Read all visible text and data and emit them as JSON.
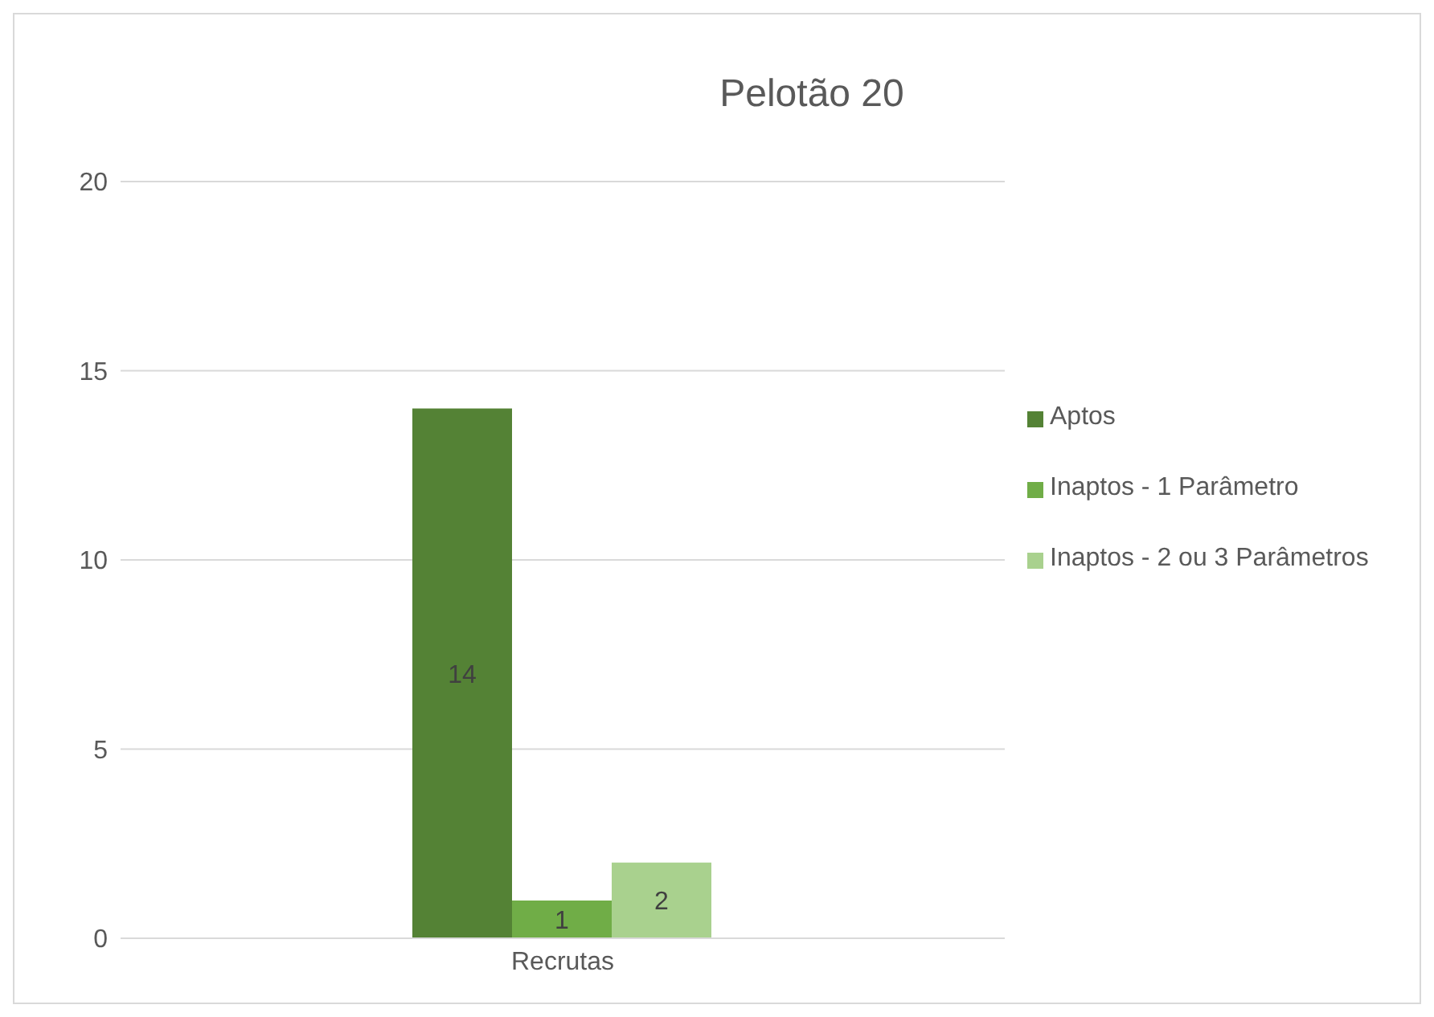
{
  "chart_data": {
    "type": "bar",
    "title": "Pelotão 20",
    "categories": [
      "Recrutas"
    ],
    "series": [
      {
        "name": "Aptos",
        "color": "#548235",
        "values": [
          14
        ]
      },
      {
        "name": "Inaptos - 1 Parâmetro",
        "color": "#70ad47",
        "values": [
          1
        ]
      },
      {
        "name": "Inaptos - 2 ou 3 Parâmetros",
        "color": "#a9d18e",
        "values": [
          2
        ]
      }
    ],
    "ylim": [
      0,
      20
    ],
    "yticks": [
      0,
      5,
      10,
      15,
      20
    ],
    "grid": "y",
    "legend": "right",
    "data_labels": true
  }
}
